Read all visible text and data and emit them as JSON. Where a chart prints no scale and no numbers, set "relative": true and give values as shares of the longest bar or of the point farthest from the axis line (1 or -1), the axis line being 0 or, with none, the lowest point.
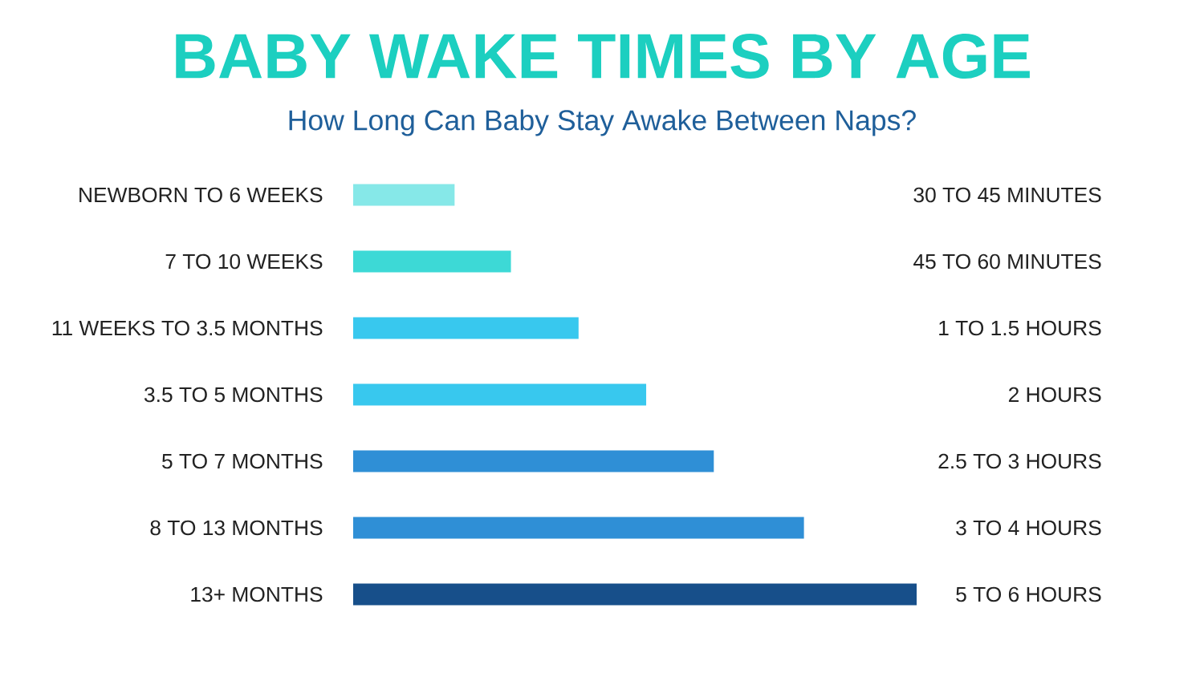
{
  "chart_data": {
    "type": "bar",
    "orientation": "horizontal",
    "relative": true,
    "title": "BABY WAKE TIMES BY AGE",
    "subtitle": "How Long Can Baby Stay Awake Between Naps?",
    "categories": [
      "NEWBORN TO 6 WEEKS",
      "7 TO 10 WEEKS",
      "11 WEEKS TO 3.5 MONTHS",
      "3.5 TO 5 MONTHS",
      "5 TO 7 MONTHS",
      "8 TO 13 MONTHS",
      "13+ MONTHS"
    ],
    "values": [
      0.18,
      0.28,
      0.4,
      0.52,
      0.64,
      0.8,
      1.0
    ],
    "colors": [
      "#86e8e8",
      "#3dd9d6",
      "#38c8ee",
      "#38c8ee",
      "#2f8fd6",
      "#2f8fd6",
      "#174f8a"
    ],
    "annotations": [
      "30 TO 45 MINUTES",
      "45 TO 60 MINUTES",
      "1 TO 1.5 HOURS",
      "2 HOURS",
      "2.5 TO 3 HOURS",
      "3 TO 4 HOURS",
      "5 TO 6 HOURS"
    ]
  }
}
